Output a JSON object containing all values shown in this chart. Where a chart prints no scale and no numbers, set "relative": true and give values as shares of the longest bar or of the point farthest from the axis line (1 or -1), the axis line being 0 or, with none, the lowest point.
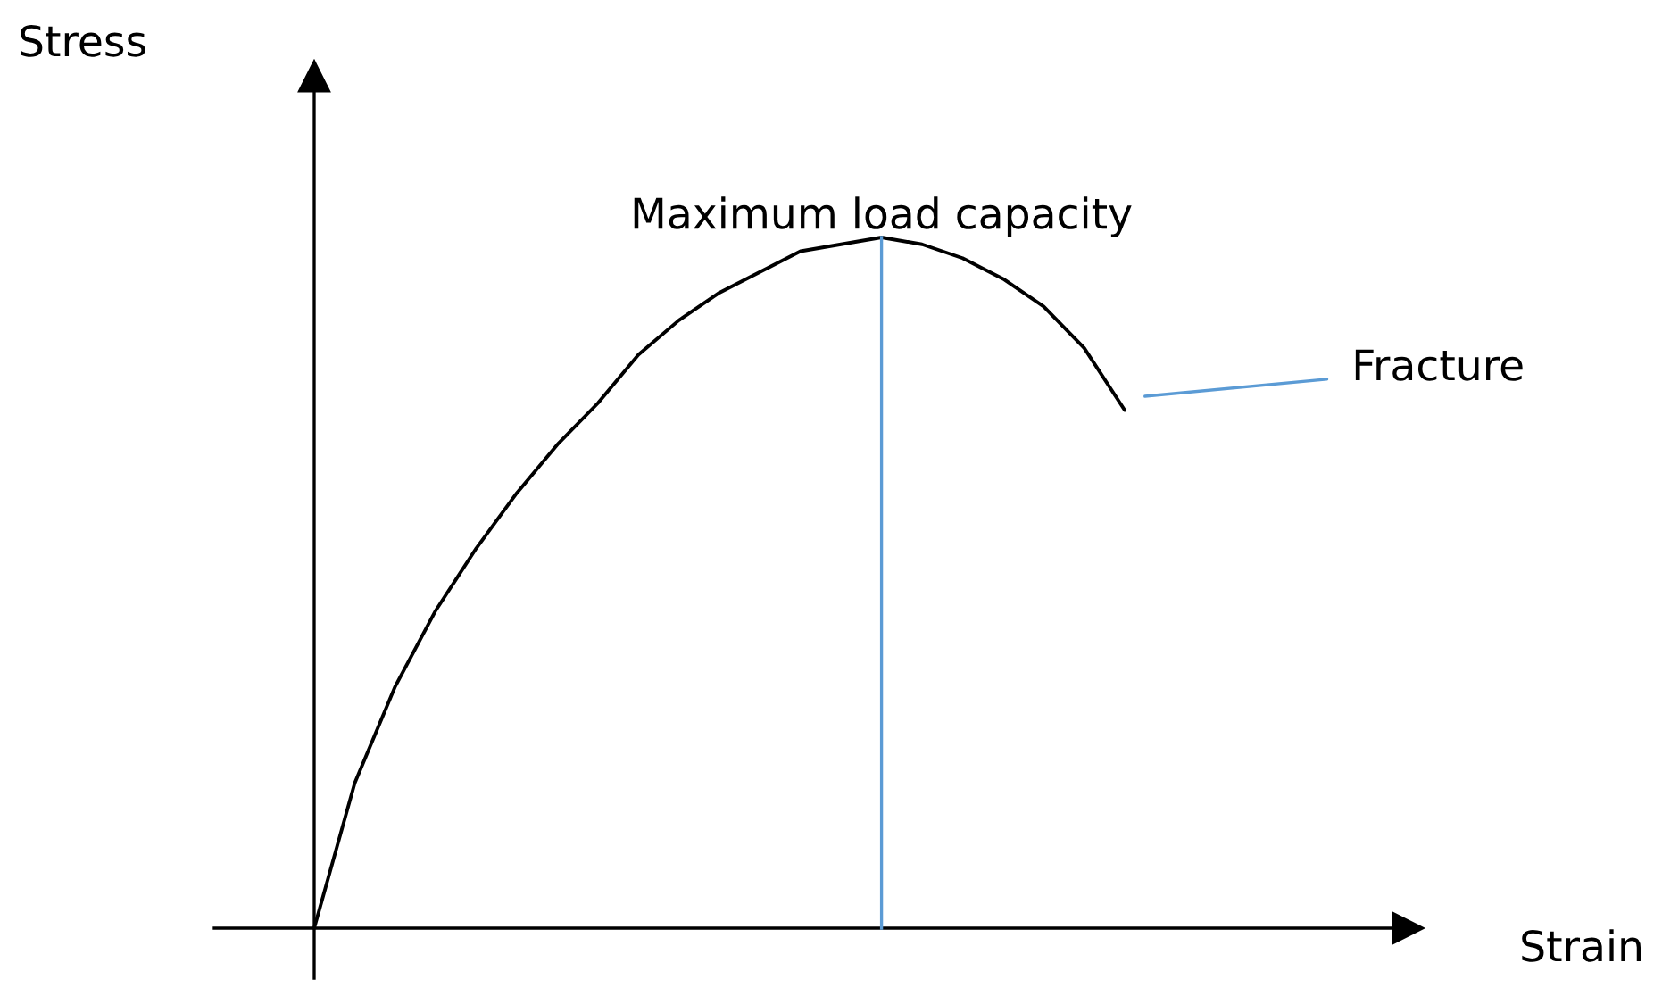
{
  "chart_data": {
    "type": "line",
    "relative": true,
    "categories": [
      null,
      null,
      null,
      null,
      null,
      null,
      null,
      null,
      null,
      null,
      null,
      null,
      null,
      null,
      null,
      null,
      null,
      null,
      null,
      null,
      null
    ],
    "color": "#000000",
    "values": [
      0,
      0.21,
      0.35,
      0.46,
      0.55,
      0.63,
      0.7,
      0.76,
      0.83,
      0.88,
      0.92,
      0.95,
      0.98,
      0.99,
      1.0,
      0.99,
      0.97,
      0.94,
      0.9,
      0.84,
      0.75
    ],
    "annotations": [
      "Stress",
      "Maximum load capacity",
      "Fracture",
      "Strain"
    ]
  }
}
